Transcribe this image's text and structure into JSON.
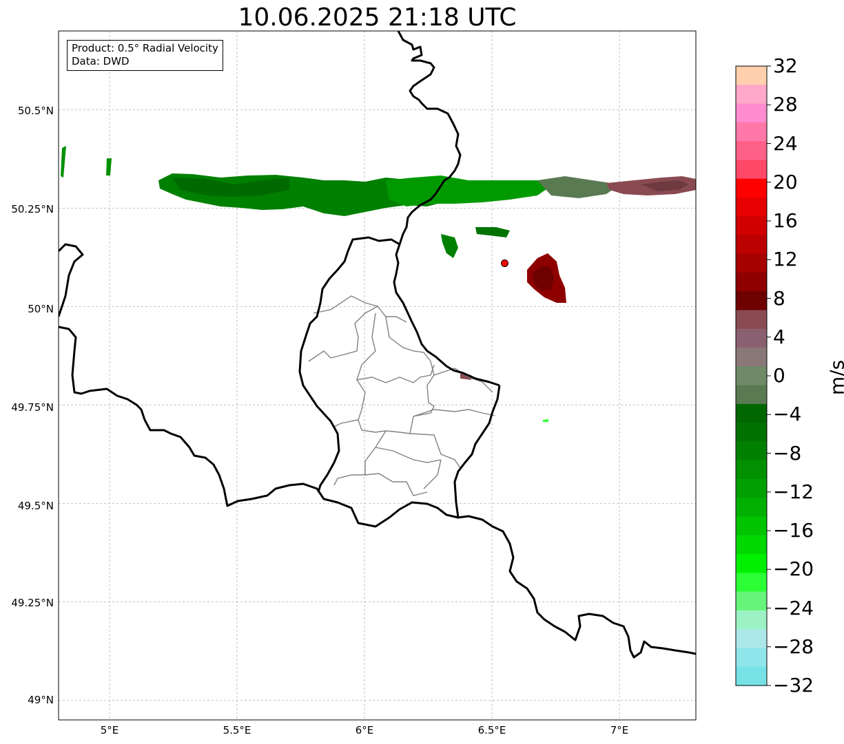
{
  "title": "10.06.2025 21:18 UTC",
  "info": {
    "product": "Product: 0.5° Radial Velocity",
    "source": "Data: DWD"
  },
  "axes": {
    "lon_range": [
      4.8,
      7.3
    ],
    "lat_range": [
      48.95,
      50.7
    ],
    "x_ticks": [
      "5°E",
      "5.5°E",
      "6°E",
      "6.5°E",
      "7°E"
    ],
    "y_ticks": [
      "50.5°N",
      "50.25°N",
      "50°N",
      "49.75°N",
      "49.5°N",
      "49.25°N",
      "49°N"
    ],
    "grid": true
  },
  "radar_site": {
    "lon": 6.55,
    "lat": 50.11,
    "color": "#ff0000"
  },
  "colorbar": {
    "label": "m/s",
    "min": -32,
    "max": 32,
    "step": 2,
    "tick_labels": [
      "32",
      "28",
      "24",
      "20",
      "16",
      "12",
      "8",
      "4",
      "0",
      "−4",
      "−8",
      "−12",
      "−16",
      "−20",
      "−24",
      "−28",
      "−32"
    ],
    "colors_top_to_bottom": [
      "#ffcfae",
      "#ffa8c8",
      "#ff8ccf",
      "#ff78a8",
      "#ff6088",
      "#ff4868",
      "#ff0000",
      "#e60000",
      "#d00000",
      "#bb0000",
      "#a60000",
      "#8e0000",
      "#6e0000",
      "#8a4a52",
      "#8a6070",
      "#8a7878",
      "#6e8a68",
      "#5a7a52",
      "#006600",
      "#007200",
      "#008000",
      "#009000",
      "#00a000",
      "#00b000",
      "#00c400",
      "#00d800",
      "#00f000",
      "#2cff36",
      "#66f57a",
      "#9cf2c4",
      "#ace8ea",
      "#8ee6ea",
      "#76e2e6"
    ]
  }
}
